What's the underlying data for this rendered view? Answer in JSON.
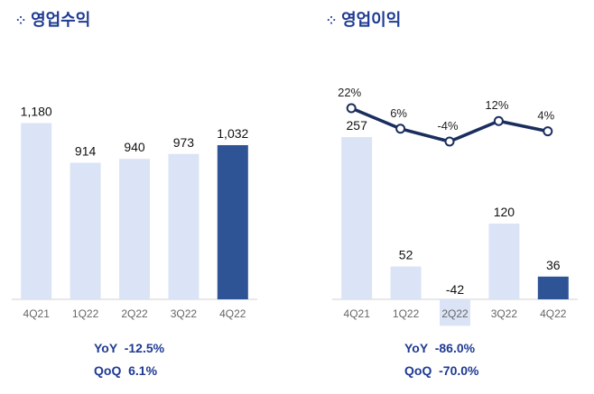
{
  "left_panel": {
    "marker": "⁘",
    "title": "영업수익"
  },
  "right_panel": {
    "marker": "⁘",
    "title": "영업이익"
  },
  "chart_data": [
    {
      "type": "bar",
      "title": "영업수익",
      "categories": [
        "4Q21",
        "1Q22",
        "2Q22",
        "3Q22",
        "4Q22"
      ],
      "values": [
        1180,
        914,
        940,
        973,
        1032
      ],
      "value_labels": [
        "1,180",
        "914",
        "940",
        "973",
        "1,032"
      ],
      "colors": [
        "#dbe4f6",
        "#dbe4f6",
        "#dbe4f6",
        "#dbe4f6",
        "#2e5496"
      ],
      "ylim": [
        0,
        1400
      ],
      "stats": [
        {
          "label": "YoY",
          "value": "-12.5%"
        },
        {
          "label": "QoQ",
          "value": "6.1%"
        }
      ]
    },
    {
      "type": "bar",
      "title": "영업이익",
      "categories": [
        "4Q21",
        "1Q22",
        "2Q22",
        "3Q22",
        "4Q22"
      ],
      "values": [
        257,
        52,
        -42,
        120,
        36
      ],
      "value_labels": [
        "257",
        "52",
        "-42",
        "120",
        "36"
      ],
      "colors": [
        "#dbe4f6",
        "#dbe4f6",
        "#dbe4f6",
        "#dbe4f6",
        "#2e5496"
      ],
      "ylim": [
        -42,
        300
      ],
      "line": {
        "values": [
          22,
          6,
          -4,
          12,
          4
        ],
        "labels": [
          "22%",
          "6%",
          "-4%",
          "12%",
          "4%"
        ],
        "color": "#1a2e5e",
        "ylim": [
          -10,
          30
        ]
      },
      "stats": [
        {
          "label": "YoY",
          "value": "-86.0%"
        },
        {
          "label": "QoQ",
          "value": "-70.0%"
        }
      ]
    }
  ]
}
